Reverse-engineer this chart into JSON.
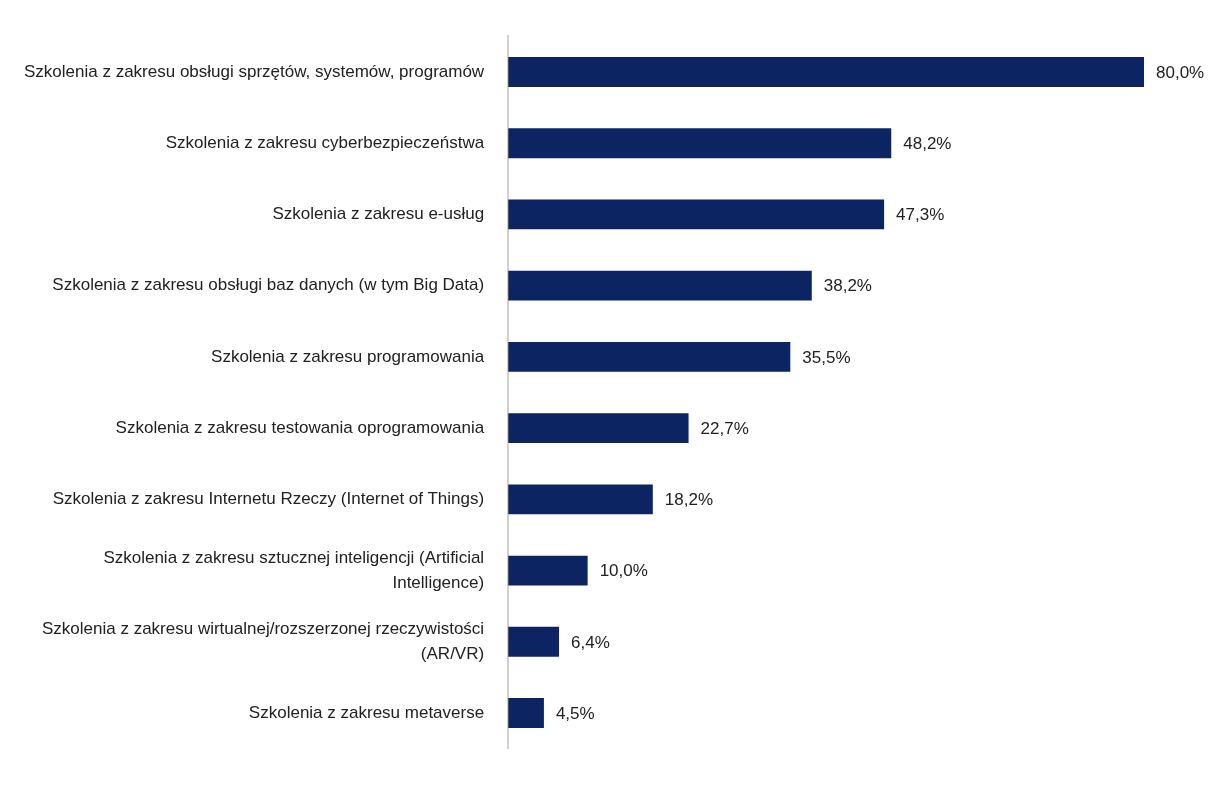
{
  "chart_data": {
    "type": "bar",
    "orientation": "horizontal",
    "categories": [
      "Szkolenia z zakresu obsługi sprzętów, systemów, programów",
      "Szkolenia z zakresu cyberbezpieczeństwa",
      "Szkolenia z zakresu e-usług",
      "Szkolenia z zakresu obsługi baz danych (w tym Big Data)",
      "Szkolenia z zakresu programowania",
      "Szkolenia z zakresu testowania oprogramowania",
      "Szkolenia z zakresu Internetu Rzeczy (Internet of Things)",
      "Szkolenia z zakresu sztucznej inteligencji (Artificial Intelligence)",
      "Szkolenia z zakresu wirtualnej/rozszerzonej rzeczywistości (AR/VR)",
      "Szkolenia z zakresu metaverse"
    ],
    "values": [
      80.0,
      48.2,
      47.3,
      38.2,
      35.5,
      22.7,
      18.2,
      10.0,
      6.4,
      4.5
    ],
    "value_labels": [
      "80,0%",
      "48,2%",
      "47,3%",
      "38,2%",
      "35,5%",
      "22,7%",
      "18,2%",
      "10,0%",
      "6,4%",
      "4,5%"
    ],
    "color": "#0c2461"
  }
}
